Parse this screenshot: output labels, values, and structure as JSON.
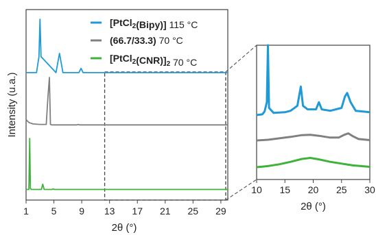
{
  "chart_data": [
    {
      "type": "line",
      "panel": "main",
      "xlabel": "2θ (°)",
      "ylabel": "Intensity (u.a.)",
      "xlim": [
        1,
        30
      ],
      "xticks": [
        "1",
        "5",
        "9",
        "13",
        "17",
        "21",
        "25",
        "29"
      ],
      "legend": [
        {
          "name_parts": [
            {
              "t": "[PtCl",
              "b": true
            },
            {
              "t": "2",
              "b": true,
              "sub": true
            },
            {
              "t": "(Bipy)]",
              "b": true
            },
            {
              "t": " 115 °C",
              "b": false
            }
          ],
          "color": "#1f9ad6"
        },
        {
          "name_parts": [
            {
              "t": "(66.7/33.3)",
              "b": true
            },
            {
              "t": " 70 °C",
              "b": false
            }
          ],
          "color": "#808080"
        },
        {
          "name_parts": [
            {
              "t": "[PtCl",
              "b": true
            },
            {
              "t": "2",
              "b": true,
              "sub": true
            },
            {
              "t": "(CNR)]",
              "b": true
            },
            {
              "t": "2",
              "b": true,
              "sub": true
            },
            {
              "t": " 70 °C",
              "b": false
            }
          ],
          "color": "#3db33a"
        }
      ],
      "series": [
        {
          "color": "#1f9ad6",
          "baseline": 0.0,
          "x": [
            1,
            2.5,
            2.85,
            3.0,
            3.15,
            5.3,
            5.8,
            6.3,
            8.6,
            8.9,
            9.2,
            30
          ],
          "y": [
            0.0,
            0.0,
            0.3,
            1.0,
            0.3,
            0.0,
            0.36,
            0.0,
            0.0,
            0.08,
            0.0,
            0.0
          ]
        },
        {
          "color": "#808080",
          "baseline": 0.0,
          "x": [
            1,
            1.4,
            2.0,
            3.0,
            3.9,
            4.15,
            4.35,
            4.5,
            4.7,
            8.3,
            8.5,
            8.7,
            30
          ],
          "y": [
            0.12,
            0.06,
            0.03,
            0.02,
            0.02,
            0.6,
            1.0,
            0.02,
            0.01,
            0.01,
            0.02,
            0.01,
            0.01
          ]
        },
        {
          "color": "#3db33a",
          "baseline": 0.0,
          "x": [
            1,
            1.4,
            1.52,
            1.62,
            1.75,
            3.2,
            3.4,
            3.6,
            4.7,
            4.9,
            5.1,
            30
          ],
          "y": [
            0.02,
            0.02,
            1.0,
            0.04,
            0.02,
            0.02,
            0.12,
            0.02,
            0.02,
            0.03,
            0.02,
            0.02
          ]
        }
      ]
    },
    {
      "type": "line",
      "panel": "inset",
      "xlabel": "2θ (°)",
      "xlim": [
        10,
        30
      ],
      "xticks": [
        "10",
        "15",
        "20",
        "25",
        "30"
      ],
      "series": [
        {
          "color": "#1f9ad6",
          "x": [
            10,
            11,
            11.4,
            11.8,
            12.0,
            12.2,
            13,
            15,
            16,
            17.2,
            17.8,
            18.2,
            19,
            20.5,
            21,
            21.5,
            23,
            25,
            25.6,
            26.0,
            26.6,
            27.5,
            30
          ],
          "y": [
            0.02,
            0.03,
            0.07,
            0.2,
            1.0,
            0.12,
            0.05,
            0.06,
            0.08,
            0.15,
            0.42,
            0.15,
            0.1,
            0.1,
            0.2,
            0.1,
            0.08,
            0.12,
            0.28,
            0.33,
            0.2,
            0.08,
            0.06
          ]
        },
        {
          "color": "#808080",
          "x": [
            10,
            12,
            14,
            16,
            18,
            19.5,
            21,
            23,
            24.5,
            25.5,
            26.2,
            27,
            28,
            30
          ],
          "y": [
            0.0,
            0.02,
            0.06,
            0.1,
            0.15,
            0.16,
            0.13,
            0.08,
            0.08,
            0.16,
            0.2,
            0.12,
            0.04,
            0.01
          ]
        },
        {
          "color": "#3db33a",
          "x": [
            10,
            12,
            14,
            16,
            18,
            19.5,
            21,
            23,
            25,
            27,
            30
          ],
          "y": [
            0.0,
            0.03,
            0.08,
            0.15,
            0.23,
            0.26,
            0.22,
            0.15,
            0.1,
            0.05,
            0.01
          ]
        }
      ]
    }
  ]
}
